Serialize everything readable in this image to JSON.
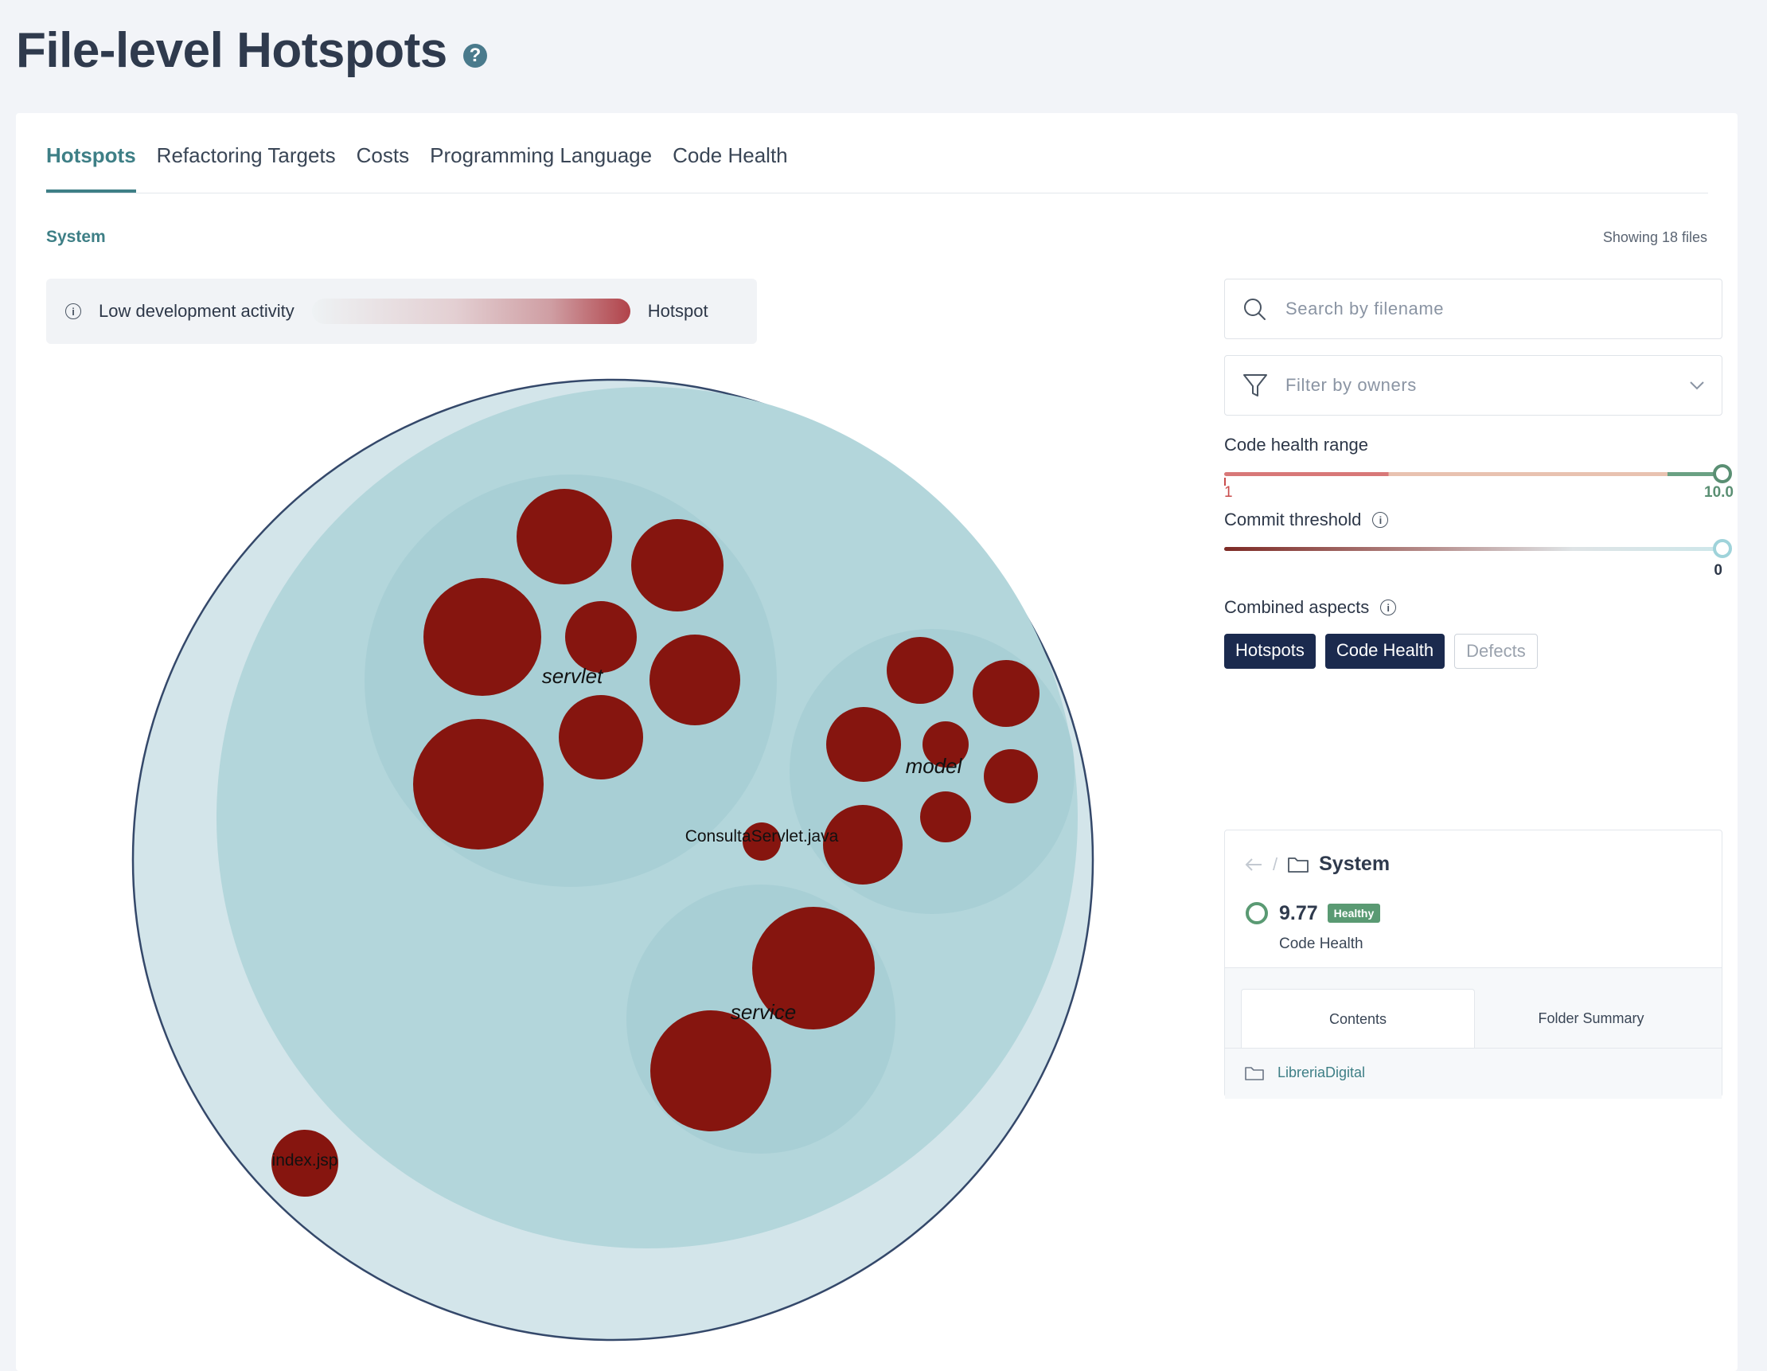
{
  "page": {
    "title": "File-level Hotspots"
  },
  "tabs": [
    "Hotspots",
    "Refactoring Targets",
    "Costs",
    "Programming Language",
    "Code Health"
  ],
  "active_tab": "Hotspots",
  "breadcrumb": "System",
  "showing": "Showing 18 files",
  "legend": {
    "low": "Low development activity",
    "high": "Hotspot"
  },
  "search": {
    "placeholder": "Search by filename"
  },
  "filter": {
    "placeholder": "Filter by owners"
  },
  "code_health_range": {
    "label": "Code health range",
    "min": "1",
    "max": "10.0"
  },
  "commit_threshold": {
    "label": "Commit threshold",
    "value": "0"
  },
  "aspects": {
    "label": "Combined aspects",
    "hotspots": "Hotspots",
    "code_health": "Code Health",
    "defects": "Defects"
  },
  "panel": {
    "folder": "System",
    "score": "9.77",
    "badge": "Healthy",
    "score_label": "Code Health",
    "tab_contents": "Contents",
    "tab_summary": "Folder Summary",
    "item": "LibreriaDigital"
  },
  "chart_labels": {
    "servlet": "servlet",
    "model": "model",
    "service": "service",
    "consulta": "ConsultaServlet.java",
    "index": "index.jsp"
  },
  "colors": {
    "accent": "#3e7f86",
    "hotspot": "#86150f",
    "outer_ring": "#d3e5ea",
    "folder_fill": "#b3d6db",
    "subfolder_fill": "#a8cfd5",
    "chip_dark": "#1b2a4e"
  }
}
